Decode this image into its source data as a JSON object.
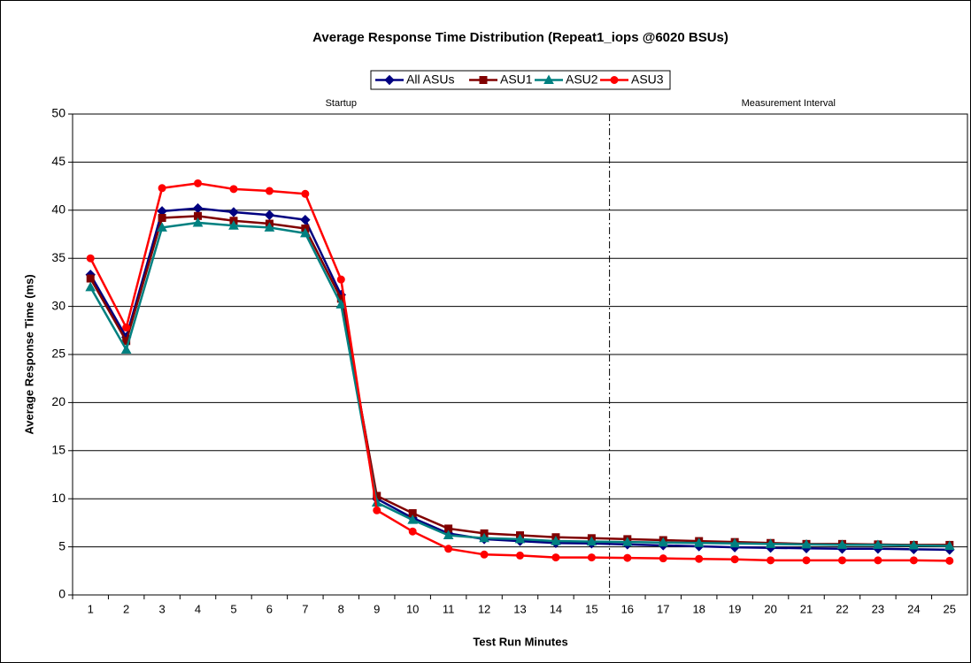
{
  "chart_data": {
    "type": "line",
    "title": "Average Response Time Distribution (Repeat1_iops @6020 BSUs)",
    "x_label": "Test Run Minutes",
    "y_label": "Average Response Time (ms)",
    "annotations": [
      "Startup",
      "Measurement Interval"
    ],
    "categories": [
      "1",
      "2",
      "3",
      "4",
      "5",
      "6",
      "7",
      "8",
      "9",
      "10",
      "11",
      "12",
      "13",
      "14",
      "15",
      "16",
      "17",
      "18",
      "19",
      "20",
      "21",
      "22",
      "23",
      "24",
      "25"
    ],
    "series": [
      {
        "name": "All ASUs",
        "color": "#000080",
        "marker": "diamond",
        "values": [
          33.3,
          26.8,
          39.9,
          40.2,
          39.8,
          39.5,
          39.0,
          31.2,
          10.0,
          8.0,
          6.4,
          5.8,
          5.6,
          5.4,
          5.35,
          5.25,
          5.15,
          5.05,
          4.95,
          4.9,
          4.85,
          4.8,
          4.8,
          4.75,
          4.7
        ]
      },
      {
        "name": "ASU1",
        "color": "#800000",
        "marker": "square",
        "values": [
          32.9,
          26.4,
          39.2,
          39.4,
          38.9,
          38.6,
          38.1,
          30.8,
          10.3,
          8.5,
          6.9,
          6.4,
          6.2,
          6.0,
          5.9,
          5.8,
          5.7,
          5.6,
          5.5,
          5.4,
          5.3,
          5.3,
          5.25,
          5.2,
          5.2
        ]
      },
      {
        "name": "ASU2",
        "color": "#008080",
        "marker": "triangle",
        "values": [
          32.0,
          25.5,
          38.2,
          38.7,
          38.4,
          38.2,
          37.6,
          30.2,
          9.6,
          7.8,
          6.2,
          5.9,
          5.8,
          5.6,
          5.55,
          5.5,
          5.45,
          5.4,
          5.35,
          5.3,
          5.25,
          5.2,
          5.2,
          5.15,
          5.1
        ]
      },
      {
        "name": "ASU3",
        "color": "#ff0000",
        "marker": "circle",
        "values": [
          35.0,
          27.8,
          42.3,
          42.8,
          42.2,
          42.0,
          41.7,
          32.8,
          8.8,
          6.6,
          4.8,
          4.2,
          4.1,
          3.9,
          3.9,
          3.85,
          3.8,
          3.75,
          3.7,
          3.6,
          3.6,
          3.6,
          3.6,
          3.6,
          3.55
        ]
      }
    ],
    "ylim": [
      0,
      50
    ],
    "yticks": [
      0,
      5,
      10,
      15,
      20,
      25,
      30,
      35,
      40,
      45,
      50
    ],
    "grid": true,
    "legend": "top"
  }
}
